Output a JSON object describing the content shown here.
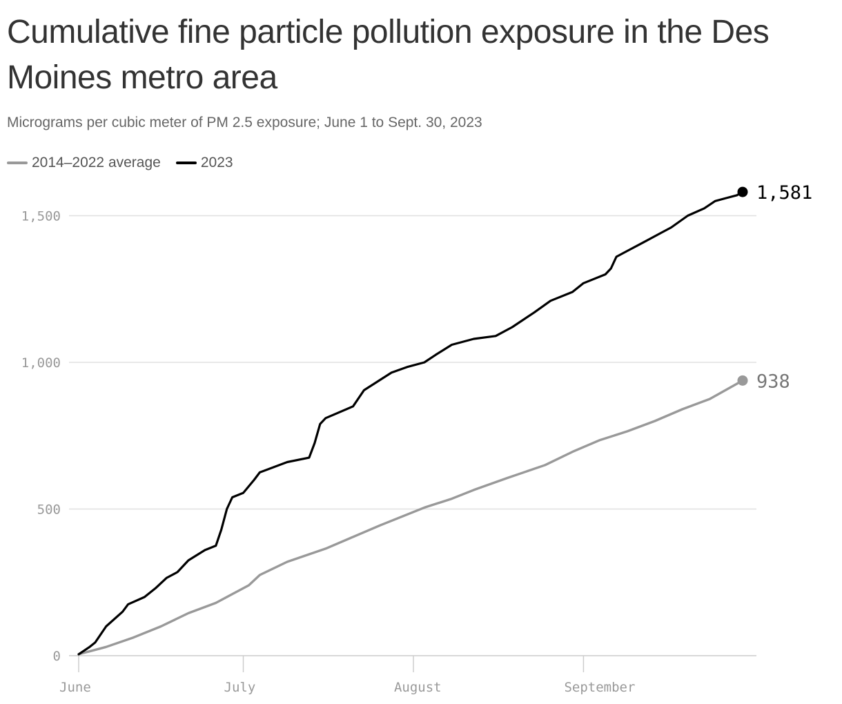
{
  "chart_data": {
    "type": "line",
    "title": "Cumulative fine particle pollution exposure in the Des Moines metro area",
    "subtitle": "Micrograms per cubic meter of PM 2.5 exposure; June 1 to Sept. 30, 2023",
    "xlabel": "",
    "ylabel": "",
    "x_ticks": [
      {
        "label": "June",
        "day": 0
      },
      {
        "label": "July",
        "day": 30
      },
      {
        "label": "August",
        "day": 61
      },
      {
        "label": "September",
        "day": 92
      }
    ],
    "y_ticks": [
      {
        "label": "0",
        "value": 0
      },
      {
        "label": "500",
        "value": 500
      },
      {
        "label": "1,000",
        "value": 1000
      },
      {
        "label": "1,500",
        "value": 1500
      }
    ],
    "xlim": [
      0,
      121
    ],
    "ylim": [
      0,
      1600
    ],
    "grid": true,
    "legend_position": "top-left",
    "series": [
      {
        "name": "2014–2022 average",
        "color": "#999999",
        "end_label": "938",
        "points": [
          [
            0,
            5
          ],
          [
            5,
            30
          ],
          [
            10,
            62
          ],
          [
            15,
            100
          ],
          [
            20,
            145
          ],
          [
            25,
            180
          ],
          [
            28,
            210
          ],
          [
            31,
            240
          ],
          [
            33,
            275
          ],
          [
            38,
            320
          ],
          [
            45,
            365
          ],
          [
            50,
            405
          ],
          [
            55,
            445
          ],
          [
            61,
            490
          ],
          [
            63,
            505
          ],
          [
            68,
            535
          ],
          [
            72,
            565
          ],
          [
            78,
            605
          ],
          [
            85,
            650
          ],
          [
            90,
            695
          ],
          [
            95,
            735
          ],
          [
            100,
            765
          ],
          [
            105,
            800
          ],
          [
            110,
            840
          ],
          [
            115,
            875
          ],
          [
            121,
            938
          ]
        ]
      },
      {
        "name": "2023",
        "color": "#000000",
        "end_label": "1,581",
        "points": [
          [
            0,
            5
          ],
          [
            2,
            30
          ],
          [
            3,
            45
          ],
          [
            5,
            100
          ],
          [
            8,
            150
          ],
          [
            9,
            175
          ],
          [
            12,
            200
          ],
          [
            14,
            230
          ],
          [
            16,
            265
          ],
          [
            18,
            285
          ],
          [
            20,
            325
          ],
          [
            23,
            360
          ],
          [
            25,
            375
          ],
          [
            26,
            430
          ],
          [
            27,
            500
          ],
          [
            28,
            540
          ],
          [
            30,
            555
          ],
          [
            32,
            600
          ],
          [
            33,
            625
          ],
          [
            38,
            660
          ],
          [
            42,
            675
          ],
          [
            43,
            725
          ],
          [
            44,
            790
          ],
          [
            45,
            810
          ],
          [
            50,
            850
          ],
          [
            52,
            905
          ],
          [
            57,
            965
          ],
          [
            60,
            985
          ],
          [
            63,
            1000
          ],
          [
            65,
            1025
          ],
          [
            68,
            1060
          ],
          [
            72,
            1080
          ],
          [
            76,
            1090
          ],
          [
            79,
            1120
          ],
          [
            83,
            1170
          ],
          [
            86,
            1210
          ],
          [
            90,
            1240
          ],
          [
            92,
            1270
          ],
          [
            96,
            1300
          ],
          [
            97,
            1320
          ],
          [
            98,
            1360
          ],
          [
            100,
            1380
          ],
          [
            103,
            1410
          ],
          [
            106,
            1440
          ],
          [
            108,
            1460
          ],
          [
            111,
            1500
          ],
          [
            114,
            1525
          ],
          [
            116,
            1550
          ],
          [
            118,
            1560
          ],
          [
            120,
            1570
          ],
          [
            121,
            1581
          ]
        ]
      }
    ]
  }
}
